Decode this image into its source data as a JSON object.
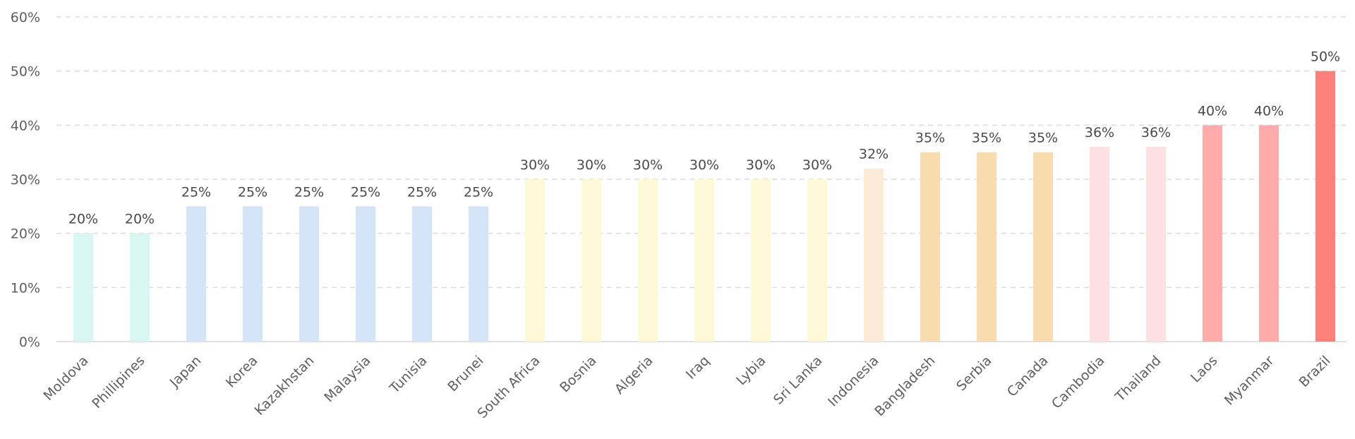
{
  "chart_data": {
    "type": "bar",
    "title": "",
    "xlabel": "",
    "ylabel": "",
    "ylim": [
      0,
      60
    ],
    "yticks": [
      0,
      10,
      20,
      30,
      40,
      50,
      60
    ],
    "ytick_labels": [
      "0%",
      "10%",
      "20%",
      "30%",
      "40%",
      "50%",
      "60%"
    ],
    "grid": true,
    "legend": "none",
    "categories": [
      "Moldova",
      "Phillipines",
      "Japan",
      "Korea",
      "Kazakhstan",
      "Malaysia",
      "Tunisia",
      "Brunei",
      "South Africa",
      "Bosnia",
      "Algeria",
      "Iraq",
      "Lybia",
      "Sri Lanka",
      "Indonesia",
      "Bangladesh",
      "Serbia",
      "Canada",
      "Cambodia",
      "Thailand",
      "Laos",
      "Myanmar",
      "Brazil"
    ],
    "values": [
      20,
      20,
      25,
      25,
      25,
      25,
      25,
      25,
      30,
      30,
      30,
      30,
      30,
      30,
      32,
      35,
      35,
      35,
      36,
      36,
      40,
      40,
      50
    ],
    "value_labels": [
      "20%",
      "20%",
      "25%",
      "25%",
      "25%",
      "25%",
      "25%",
      "25%",
      "30%",
      "30%",
      "30%",
      "30%",
      "30%",
      "30%",
      "32%",
      "35%",
      "35%",
      "35%",
      "36%",
      "36%",
      "40%",
      "40%",
      "50%"
    ],
    "colors": [
      "#d9f6f3",
      "#d9f6f3",
      "#d6e4f8",
      "#d6e4f8",
      "#d6e4f8",
      "#d6e4f8",
      "#d6e4f8",
      "#d6e4f8",
      "#fff8d6",
      "#fff8d6",
      "#fff8d6",
      "#fff8d6",
      "#fff8d6",
      "#fff8d6",
      "#fdebd8",
      "#f8dcb0",
      "#f8dcb0",
      "#f8dcb0",
      "#fde0e2",
      "#fde0e2",
      "#ffabab",
      "#ffabab",
      "#ff7f7a"
    ],
    "grid_color": "#dcdcdc",
    "text_color": "#5f5f5f"
  }
}
